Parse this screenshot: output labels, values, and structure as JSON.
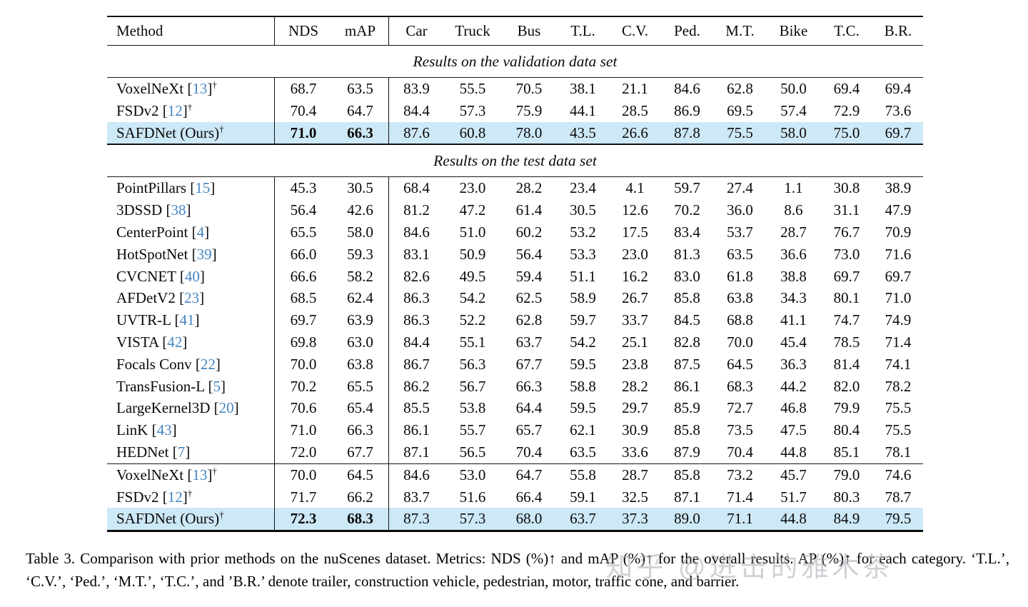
{
  "colors": {
    "highlight": "#cde8f6",
    "citation_blue": "#4585c0",
    "rule": "#111111",
    "background": "#ffffff"
  },
  "watermark": {
    "text": "知乎 @进击的雅木茶"
  },
  "caption": {
    "text": "Table 3. Comparison with prior methods on the nuScenes dataset. Metrics: NDS (%)↑ and mAP (%)↑ for the overall results. AP (%)↑ for each category. ‘T.L.’, ‘C.V.’, ‘Ped.’, ‘M.T.’, ‘T.C.’, and ’B.R.’ denote trailer, construction vehicle, pedestrian, motor, traffic cone, and barrier."
  },
  "chart_data": {
    "type": "table",
    "title": "Table 3. Comparison with prior methods on the nuScenes dataset",
    "columns": [
      "Method",
      "NDS",
      "mAP",
      "Car",
      "Truck",
      "Bus",
      "T.L.",
      "C.V.",
      "Ped.",
      "M.T.",
      "Bike",
      "T.C.",
      "B.R."
    ],
    "sections": [
      {
        "title": "Results on the validation data set",
        "groups": [
          [
            {
              "label": "VoxelNeXt",
              "ref": "13",
              "dagger": true,
              "highlight": false,
              "values": [
                "68.7",
                "63.5",
                "83.9",
                "55.5",
                "70.5",
                "38.1",
                "21.1",
                "84.6",
                "62.8",
                "50.0",
                "69.4",
                "69.4"
              ]
            },
            {
              "label": "FSDv2",
              "ref": "12",
              "dagger": true,
              "highlight": false,
              "values": [
                "70.4",
                "64.7",
                "84.4",
                "57.3",
                "75.9",
                "44.1",
                "28.5",
                "86.9",
                "69.5",
                "57.4",
                "72.9",
                "73.6"
              ]
            },
            {
              "label": "SAFDNet (Ours)",
              "ref": null,
              "dagger": true,
              "highlight": true,
              "bold_values": [
                0,
                1
              ],
              "values": [
                "71.0",
                "66.3",
                "87.6",
                "60.8",
                "78.0",
                "43.5",
                "26.6",
                "87.8",
                "75.5",
                "58.0",
                "75.0",
                "69.7"
              ]
            }
          ]
        ]
      },
      {
        "title": "Results on the test data set",
        "groups": [
          [
            {
              "label": "PointPillars",
              "ref": "15",
              "dagger": false,
              "highlight": false,
              "values": [
                "45.3",
                "30.5",
                "68.4",
                "23.0",
                "28.2",
                "23.4",
                "4.1",
                "59.7",
                "27.4",
                "1.1",
                "30.8",
                "38.9"
              ]
            },
            {
              "label": "3DSSD",
              "ref": "38",
              "dagger": false,
              "highlight": false,
              "values": [
                "56.4",
                "42.6",
                "81.2",
                "47.2",
                "61.4",
                "30.5",
                "12.6",
                "70.2",
                "36.0",
                "8.6",
                "31.1",
                "47.9"
              ]
            },
            {
              "label": "CenterPoint",
              "ref": "4",
              "dagger": false,
              "highlight": false,
              "values": [
                "65.5",
                "58.0",
                "84.6",
                "51.0",
                "60.2",
                "53.2",
                "17.5",
                "83.4",
                "53.7",
                "28.7",
                "76.7",
                "70.9"
              ]
            },
            {
              "label": "HotSpotNet",
              "ref": "39",
              "dagger": false,
              "highlight": false,
              "values": [
                "66.0",
                "59.3",
                "83.1",
                "50.9",
                "56.4",
                "53.3",
                "23.0",
                "81.3",
                "63.5",
                "36.6",
                "73.0",
                "71.6"
              ]
            },
            {
              "label": "CVCNET",
              "ref": "40",
              "dagger": false,
              "highlight": false,
              "values": [
                "66.6",
                "58.2",
                "82.6",
                "49.5",
                "59.4",
                "51.1",
                "16.2",
                "83.0",
                "61.8",
                "38.8",
                "69.7",
                "69.7"
              ]
            },
            {
              "label": "AFDetV2",
              "ref": "23",
              "dagger": false,
              "highlight": false,
              "values": [
                "68.5",
                "62.4",
                "86.3",
                "54.2",
                "62.5",
                "58.9",
                "26.7",
                "85.8",
                "63.8",
                "34.3",
                "80.1",
                "71.0"
              ]
            },
            {
              "label": "UVTR-L",
              "ref": "41",
              "dagger": false,
              "highlight": false,
              "values": [
                "69.7",
                "63.9",
                "86.3",
                "52.2",
                "62.8",
                "59.7",
                "33.7",
                "84.5",
                "68.8",
                "41.1",
                "74.7",
                "74.9"
              ]
            },
            {
              "label": "VISTA",
              "ref": "42",
              "dagger": false,
              "highlight": false,
              "values": [
                "69.8",
                "63.0",
                "84.4",
                "55.1",
                "63.7",
                "54.2",
                "25.1",
                "82.8",
                "70.0",
                "45.4",
                "78.5",
                "71.4"
              ]
            },
            {
              "label": "Focals Conv",
              "ref": "22",
              "dagger": false,
              "highlight": false,
              "values": [
                "70.0",
                "63.8",
                "86.7",
                "56.3",
                "67.7",
                "59.5",
                "23.8",
                "87.5",
                "64.5",
                "36.3",
                "81.4",
                "74.1"
              ]
            },
            {
              "label": "TransFusion-L",
              "ref": "5",
              "dagger": false,
              "highlight": false,
              "values": [
                "70.2",
                "65.5",
                "86.2",
                "56.7",
                "66.3",
                "58.8",
                "28.2",
                "86.1",
                "68.3",
                "44.2",
                "82.0",
                "78.2"
              ]
            },
            {
              "label": "LargeKernel3D",
              "ref": "20",
              "dagger": false,
              "highlight": false,
              "values": [
                "70.6",
                "65.4",
                "85.5",
                "53.8",
                "64.4",
                "59.5",
                "29.7",
                "85.9",
                "72.7",
                "46.8",
                "79.9",
                "75.5"
              ]
            },
            {
              "label": "LinK",
              "ref": "43",
              "dagger": false,
              "highlight": false,
              "values": [
                "71.0",
                "66.3",
                "86.1",
                "55.7",
                "65.7",
                "62.1",
                "30.9",
                "85.8",
                "73.5",
                "47.5",
                "80.4",
                "75.5"
              ]
            },
            {
              "label": "HEDNet",
              "ref": "7",
              "dagger": false,
              "highlight": false,
              "values": [
                "72.0",
                "67.7",
                "87.1",
                "56.5",
                "70.4",
                "63.5",
                "33.6",
                "87.9",
                "70.4",
                "44.8",
                "85.1",
                "78.1"
              ]
            }
          ],
          [
            {
              "label": "VoxelNeXt",
              "ref": "13",
              "dagger": true,
              "highlight": false,
              "values": [
                "70.0",
                "64.5",
                "84.6",
                "53.0",
                "64.7",
                "55.8",
                "28.7",
                "85.8",
                "73.2",
                "45.7",
                "79.0",
                "74.6"
              ]
            },
            {
              "label": "FSDv2",
              "ref": "12",
              "dagger": true,
              "highlight": false,
              "values": [
                "71.7",
                "66.2",
                "83.7",
                "51.6",
                "66.4",
                "59.1",
                "32.5",
                "87.1",
                "71.4",
                "51.7",
                "80.3",
                "78.7"
              ]
            },
            {
              "label": "SAFDNet (Ours)",
              "ref": null,
              "dagger": true,
              "highlight": true,
              "bold_values": [
                0,
                1
              ],
              "values": [
                "72.3",
                "68.3",
                "87.3",
                "57.3",
                "68.0",
                "63.7",
                "37.3",
                "89.0",
                "71.1",
                "44.8",
                "84.9",
                "79.5"
              ]
            }
          ]
        ]
      }
    ]
  }
}
